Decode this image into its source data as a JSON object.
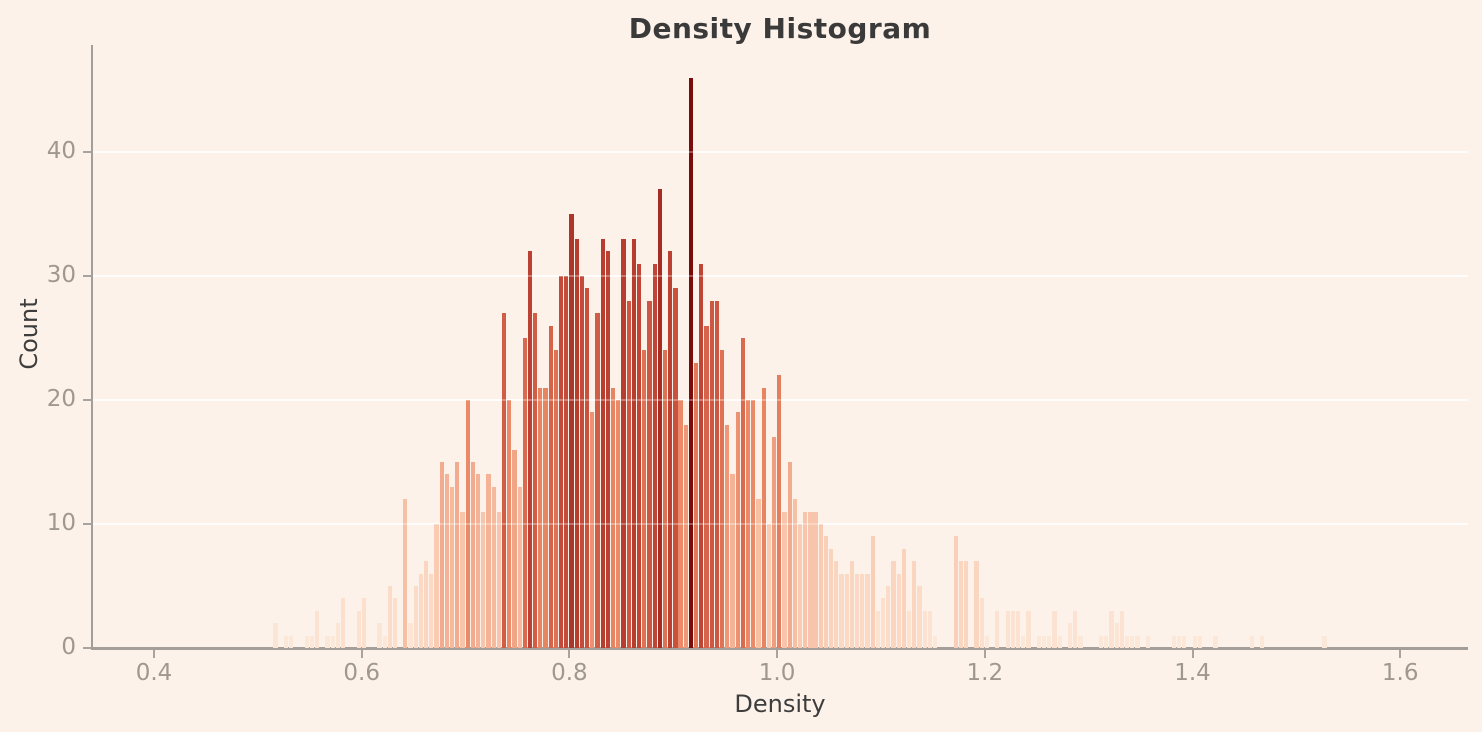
{
  "figure": {
    "title": "Density Histogram",
    "xlabel": "Density",
    "ylabel": "Count"
  },
  "axes": {
    "x_tick_labels": [
      "0.4",
      "0.6",
      "0.8",
      "1.0",
      "1.2",
      "1.4",
      "1.6"
    ],
    "x_tick_values": [
      0.4,
      0.6,
      0.8,
      1.0,
      1.2,
      1.4,
      1.6
    ],
    "y_tick_labels": [
      "0",
      "10",
      "20",
      "30",
      "40"
    ],
    "y_tick_values": [
      0,
      10,
      20,
      30,
      40
    ],
    "grid_y_values": [
      10,
      20,
      30,
      40
    ]
  },
  "chart_data": {
    "type": "bar",
    "subtype": "histogram",
    "title": "Density Histogram",
    "xlabel": "Density",
    "ylabel": "Count",
    "bin_start": 0.515,
    "bin_width": 0.005,
    "xlim": [
      0.3405,
      1.6655
    ],
    "ylim": [
      0,
      48.6
    ],
    "grid": true,
    "legend": false,
    "color_encoding": "bar height mapped to sequential red colormap (taller = darker)",
    "values": [
      2,
      0,
      1,
      1,
      0,
      0,
      1,
      1,
      3,
      0,
      1,
      1,
      2,
      4,
      0,
      0,
      3,
      4,
      0,
      0,
      2,
      1,
      5,
      4,
      0,
      12,
      2,
      5,
      6,
      7,
      6,
      10,
      15,
      14,
      13,
      15,
      11,
      20,
      15,
      14,
      11,
      14,
      13,
      11,
      27,
      20,
      16,
      13,
      25,
      32,
      27,
      21,
      21,
      26,
      24,
      30,
      30,
      35,
      33,
      30,
      29,
      19,
      27,
      33,
      32,
      21,
      20,
      33,
      28,
      33,
      31,
      24,
      28,
      31,
      37,
      24,
      32,
      29,
      20,
      18,
      46,
      23,
      31,
      26,
      28,
      28,
      24,
      18,
      14,
      19,
      25,
      20,
      20,
      12,
      21,
      10,
      17,
      22,
      11,
      15,
      12,
      10,
      11,
      11,
      11,
      10,
      9,
      8,
      7,
      6,
      6,
      7,
      6,
      6,
      6,
      9,
      3,
      4,
      5,
      7,
      6,
      8,
      3,
      7,
      5,
      3,
      3,
      1,
      0,
      0,
      0,
      9,
      7,
      7,
      0,
      7,
      4,
      1,
      0,
      3,
      0,
      3,
      3,
      3,
      1,
      3,
      0,
      1,
      1,
      1,
      3,
      1,
      0,
      2,
      3,
      1,
      0,
      0,
      0,
      1,
      1,
      3,
      2,
      3,
      1,
      1,
      1,
      0,
      1,
      0,
      0,
      0,
      0,
      1,
      1,
      1,
      0,
      1,
      1,
      0,
      0,
      1,
      0,
      0,
      0,
      0,
      0,
      0,
      1,
      0,
      1,
      0,
      0,
      0,
      0,
      0,
      0,
      0,
      0,
      0,
      0,
      0,
      1
    ],
    "max_count": 46,
    "color_stops": [
      [
        0,
        "#FDEFE3"
      ],
      [
        1,
        "#FCE8D9"
      ],
      [
        3,
        "#FCE2D1"
      ],
      [
        5,
        "#FBDCC8"
      ],
      [
        8,
        "#FAD3BC"
      ],
      [
        10,
        "#F8CBB2"
      ],
      [
        13,
        "#F5BA9E"
      ],
      [
        15,
        "#F2AB8E"
      ],
      [
        18,
        "#EE9878"
      ],
      [
        20,
        "#EA8A69"
      ],
      [
        23,
        "#E07A58"
      ],
      [
        25,
        "#D96A50"
      ],
      [
        28,
        "#CD5742"
      ],
      [
        31,
        "#C04536"
      ],
      [
        34,
        "#B33A2C"
      ],
      [
        37,
        "#A52D23"
      ],
      [
        40,
        "#96211B"
      ],
      [
        43,
        "#891616"
      ],
      [
        46,
        "#7B0C0C"
      ]
    ]
  },
  "colors": {
    "background": "#fdf2ea",
    "axis": "#a39e99",
    "tick_label": "#9e9890",
    "title_text": "#3a3a3a",
    "axis_label_text": "#3d3d3d",
    "bar_min": "#FDEFE3",
    "bar_max": "#7B0C0C"
  }
}
